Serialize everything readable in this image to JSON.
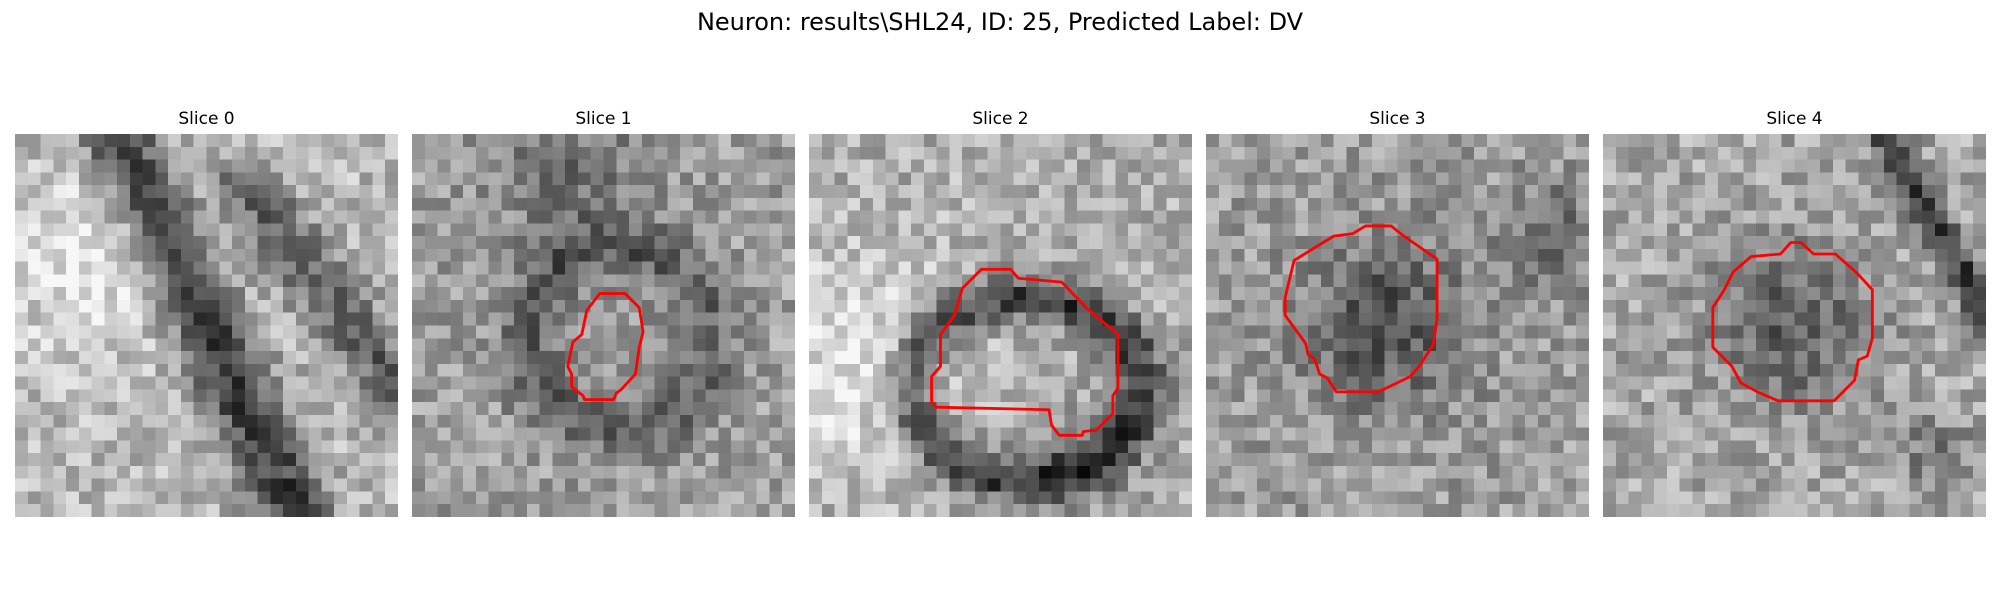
{
  "figure": {
    "title": "Neuron: results\\SHL24, ID: 25, Predicted Label: DV",
    "overlay_color": "#ff0000"
  },
  "panels": [
    {
      "title": "Slice 0"
    },
    {
      "title": "Slice 1"
    },
    {
      "title": "Slice 2"
    },
    {
      "title": "Slice 3"
    },
    {
      "title": "Slice 4"
    }
  ]
}
